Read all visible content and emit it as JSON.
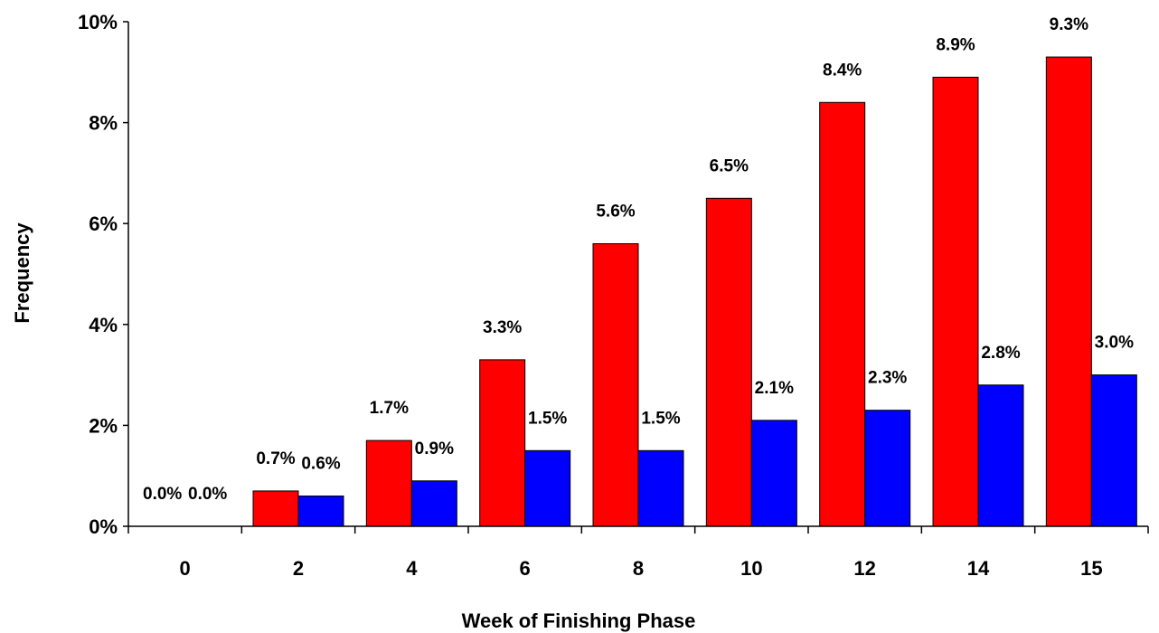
{
  "chart_data": {
    "type": "bar",
    "title": "",
    "xlabel": "Week of Finishing Phase",
    "ylabel": "Frequency",
    "ylim": [
      0,
      10
    ],
    "yticks": [
      0,
      2,
      4,
      6,
      8,
      10
    ],
    "ytick_labels": [
      "0%",
      "2%",
      "4%",
      "6%",
      "8%",
      "10%"
    ],
    "categories": [
      "0",
      "2",
      "4",
      "6",
      "8",
      "10",
      "12",
      "14",
      "15"
    ],
    "grid": false,
    "legend": "none",
    "series": [
      {
        "color": "#ff0000",
        "values": [
          0.0,
          0.7,
          1.7,
          3.3,
          5.6,
          6.5,
          8.4,
          8.9,
          9.3
        ],
        "labels": [
          "0.0%",
          "0.7%",
          "1.7%",
          "3.3%",
          "5.6%",
          "6.5%",
          "8.4%",
          "8.9%",
          "9.3%"
        ]
      },
      {
        "color": "#0000ff",
        "values": [
          0.0,
          0.6,
          0.9,
          1.5,
          1.5,
          2.1,
          2.3,
          2.8,
          3.0
        ],
        "labels": [
          "0.0%",
          "0.6%",
          "0.9%",
          "1.5%",
          "1.5%",
          "2.1%",
          "2.3%",
          "2.8%",
          "3.0%"
        ]
      }
    ]
  }
}
